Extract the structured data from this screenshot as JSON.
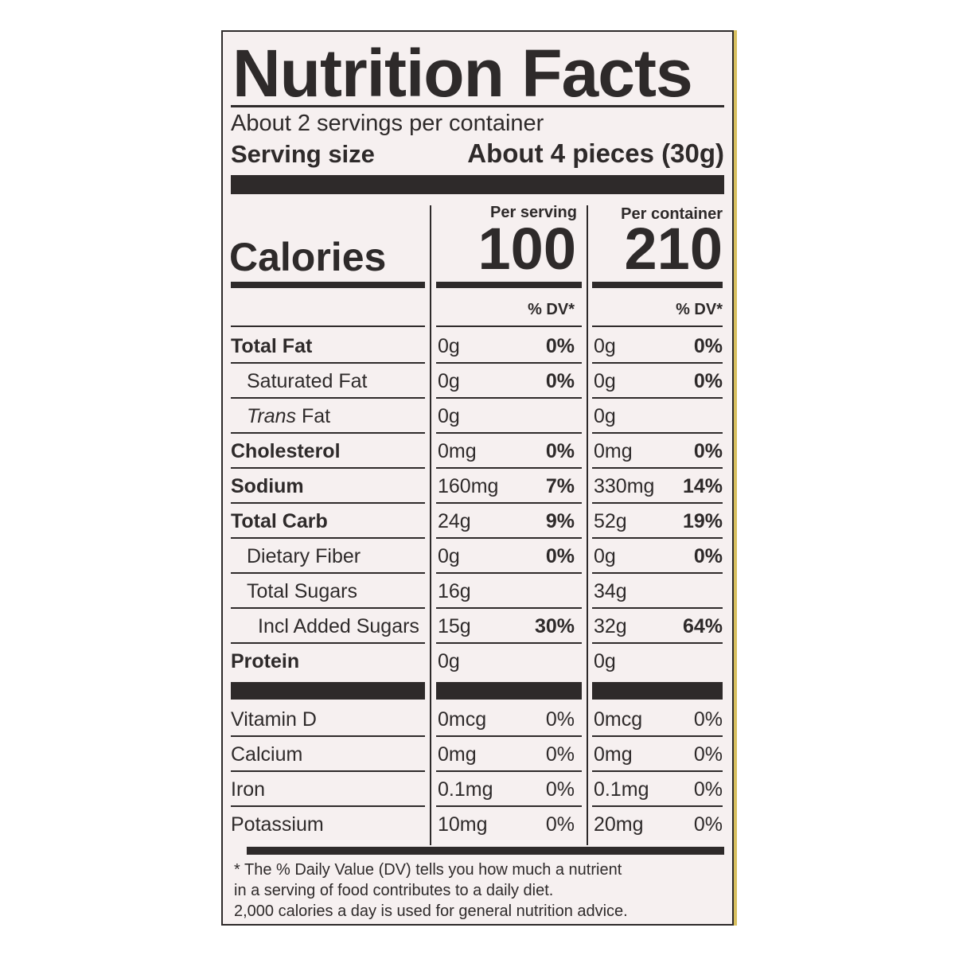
{
  "title": "Nutrition Facts",
  "servings_per_container": "About 2 servings per container",
  "serving_size_label": "Serving size",
  "serving_size_value": "About 4 pieces (30g)",
  "columns": {
    "per_serving": "Per serving",
    "per_container": "Per container"
  },
  "calories": {
    "label": "Calories",
    "per_serving": "100",
    "per_container": "210"
  },
  "dv_header": "% DV*",
  "nutrients": [
    {
      "name": "Total Fat",
      "serving": "0g",
      "serving_dv": "0%",
      "container": "0g",
      "container_dv": "0%"
    },
    {
      "name": "Saturated Fat",
      "serving": "0g",
      "serving_dv": "0%",
      "container": "0g",
      "container_dv": "0%"
    },
    {
      "name": "Trans Fat",
      "serving": "0g",
      "serving_dv": "",
      "container": "0g",
      "container_dv": ""
    },
    {
      "name": "Cholesterol",
      "serving": "0mg",
      "serving_dv": "0%",
      "container": "0mg",
      "container_dv": "0%"
    },
    {
      "name": "Sodium",
      "serving": "160mg",
      "serving_dv": "7%",
      "container": "330mg",
      "container_dv": "14%"
    },
    {
      "name": "Total Carb",
      "serving": "24g",
      "serving_dv": "9%",
      "container": "52g",
      "container_dv": "19%"
    },
    {
      "name": "Dietary Fiber",
      "serving": "0g",
      "serving_dv": "0%",
      "container": "0g",
      "container_dv": "0%"
    },
    {
      "name": "Total Sugars",
      "serving": "16g",
      "serving_dv": "",
      "container": "34g",
      "container_dv": ""
    },
    {
      "name": "Incl Added Sugars",
      "serving": "15g",
      "serving_dv": "30%",
      "container": "32g",
      "container_dv": "64%"
    },
    {
      "name": "Protein",
      "serving": "0g",
      "serving_dv": "",
      "container": "0g",
      "container_dv": ""
    }
  ],
  "vitamins": [
    {
      "name": "Vitamin D",
      "serving": "0mcg",
      "serving_dv": "0%",
      "container": "0mcg",
      "container_dv": "0%"
    },
    {
      "name": "Calcium",
      "serving": "0mg",
      "serving_dv": "0%",
      "container": "0mg",
      "container_dv": "0%"
    },
    {
      "name": "Iron",
      "serving": "0.1mg",
      "serving_dv": "0%",
      "container": "0.1mg",
      "container_dv": "0%"
    },
    {
      "name": "Potassium",
      "serving": "10mg",
      "serving_dv": "0%",
      "container": "20mg",
      "container_dv": "0%"
    }
  ],
  "footnote": [
    "* The % Daily Value (DV) tells you how much a nutrient",
    "in a serving of food contributes to a daily diet.",
    "2,000 calories a day is used for general nutrition advice."
  ]
}
